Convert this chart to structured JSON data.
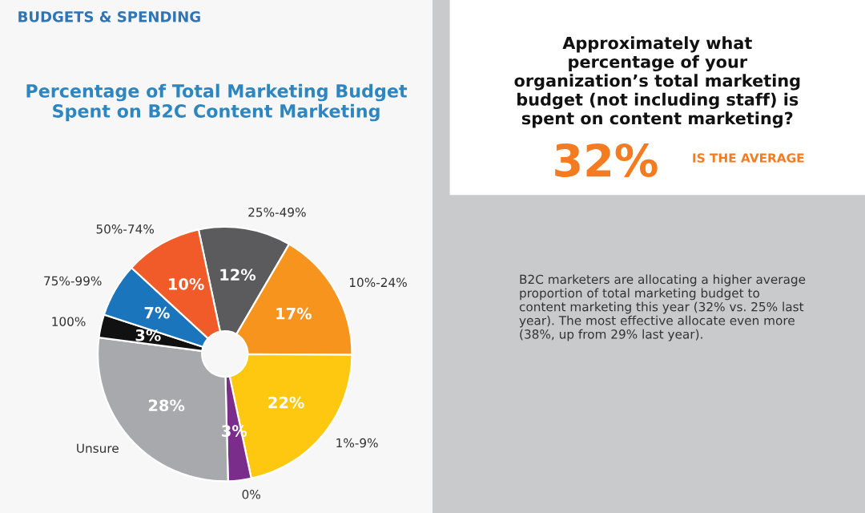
{
  "chart_data": {
    "type": "donut",
    "title": "Percentage of Total Marketing Budget\nSpent on B2C Content Marketing",
    "categories": [
      "25%-49%",
      "10%-24%",
      "1%-9%",
      "0%",
      "Unsure",
      "100%",
      "75%-99%",
      "50%-74%"
    ],
    "values": [
      12,
      17,
      22,
      3,
      28,
      3,
      7,
      10
    ],
    "value_labels": [
      "12%",
      "17%",
      "22%",
      "3%",
      "28%",
      "3%",
      "7%",
      "10%"
    ],
    "colors": [
      "#5b5b5d",
      "#f7941d",
      "#fdc80f",
      "#7b2d8b",
      "#a7a9ac",
      "#111111",
      "#1b75bc",
      "#f15a29"
    ],
    "annotations": [
      "BUDGETS & SPENDING",
      "Approximately what\npercentage of your\norganization’s total marketing\nbudget (not including staff) is\nspent on content marketing?",
      "32%",
      "IS THE AVERAGE",
      "B2C marketers are allocating a higher average\nproportion of total marketing budget to\ncontent marketing this year (32% vs. 25% last\nyear). The most effective allocate even more\n(38%, up from 29% last year)."
    ]
  }
}
